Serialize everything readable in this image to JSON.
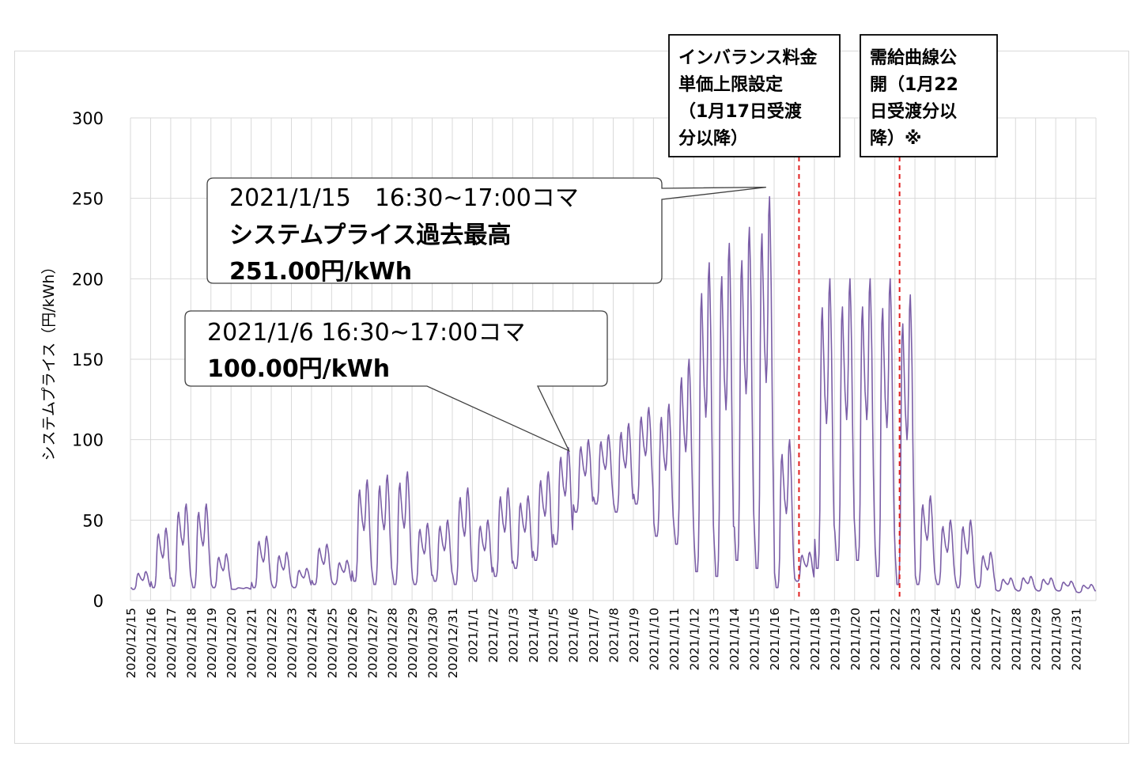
{
  "chart_data": {
    "type": "line",
    "title": "",
    "ylabel": "システムプライス（円/kWh）",
    "xlabel": "",
    "ylim": [
      0,
      300
    ],
    "yticks": [
      0,
      50,
      100,
      150,
      200,
      250,
      300
    ],
    "grid": true,
    "line_color": "#7b5ea7",
    "marker_color": "#e02020",
    "categories": [
      "2020/12/15",
      "2020/12/16",
      "2020/12/17",
      "2020/12/18",
      "2020/12/19",
      "2020/12/20",
      "2020/12/21",
      "2020/12/22",
      "2020/12/23",
      "2020/12/24",
      "2020/12/25",
      "2020/12/26",
      "2020/12/27",
      "2020/12/28",
      "2020/12/29",
      "2020/12/30",
      "2020/12/31",
      "2021/1/1",
      "2021/1/2",
      "2021/1/3",
      "2021/1/4",
      "2021/1/5",
      "2021/1/6",
      "2021/1/7",
      "2021/1/8",
      "2021/1/9",
      "2021/1/10",
      "2021/1/11",
      "2021/1/12",
      "2021/1/13",
      "2021/1/14",
      "2021/1/15",
      "2021/1/16",
      "2021/1/17",
      "2021/1/18",
      "2021/1/19",
      "2021/1/20",
      "2021/1/21",
      "2021/1/22",
      "2021/1/23",
      "2021/1/24",
      "2021/1/25",
      "2021/1/26",
      "2021/1/27",
      "2021/1/28",
      "2021/1/29",
      "2021/1/30",
      "2021/1/31"
    ],
    "series": [
      {
        "daily": [
          {
            "base": 7,
            "peak": 18
          },
          {
            "base": 8,
            "peak": 45
          },
          {
            "base": 9,
            "peak": 60
          },
          {
            "base": 8,
            "peak": 60
          },
          {
            "base": 8,
            "peak": 29
          },
          {
            "base": 7,
            "peak": 8
          },
          {
            "base": 8,
            "peak": 40
          },
          {
            "base": 8,
            "peak": 30
          },
          {
            "base": 8,
            "peak": 20
          },
          {
            "base": 10,
            "peak": 35
          },
          {
            "base": 10,
            "peak": 25
          },
          {
            "base": 12,
            "peak": 75
          },
          {
            "base": 10,
            "peak": 78
          },
          {
            "base": 10,
            "peak": 80
          },
          {
            "base": 10,
            "peak": 48
          },
          {
            "base": 12,
            "peak": 50
          },
          {
            "base": 10,
            "peak": 70
          },
          {
            "base": 12,
            "peak": 50
          },
          {
            "base": 15,
            "peak": 70
          },
          {
            "base": 20,
            "peak": 65
          },
          {
            "base": 25,
            "peak": 80
          },
          {
            "base": 35,
            "peak": 95
          },
          {
            "base": 55,
            "peak": 100
          },
          {
            "base": 60,
            "peak": 103
          },
          {
            "base": 55,
            "peak": 110
          },
          {
            "base": 60,
            "peak": 120
          },
          {
            "base": 40,
            "peak": 122
          },
          {
            "base": 35,
            "peak": 150
          },
          {
            "base": 18,
            "peak": 210
          },
          {
            "base": 15,
            "peak": 222
          },
          {
            "base": 25,
            "peak": 232
          },
          {
            "base": 20,
            "peak": 251
          },
          {
            "base": 8,
            "peak": 100
          },
          {
            "base": 12,
            "peak": 30
          },
          {
            "base": 20,
            "peak": 200
          },
          {
            "base": 25,
            "peak": 200
          },
          {
            "base": 25,
            "peak": 200
          },
          {
            "base": 15,
            "peak": 200
          },
          {
            "base": 10,
            "peak": 190
          },
          {
            "base": 10,
            "peak": 65
          },
          {
            "base": 10,
            "peak": 50
          },
          {
            "base": 8,
            "peak": 50
          },
          {
            "base": 8,
            "peak": 30
          },
          {
            "base": 6,
            "peak": 14
          },
          {
            "base": 6,
            "peak": 15
          },
          {
            "base": 6,
            "peak": 14
          },
          {
            "base": 6,
            "peak": 12
          },
          {
            "base": 5,
            "peak": 10
          }
        ]
      }
    ],
    "annotations": [
      {
        "id": "peak",
        "line1": "2021/1/15　16:30~17:00コマ",
        "line2": "システムプライス過去最高",
        "line3": "251.00円/kWh",
        "x": "2021/1/15",
        "y": 251
      },
      {
        "id": "jan6",
        "line1": "2021/1/6 16:30~17:00コマ",
        "line2": "100.00円/kWh",
        "x": "2021/1/6",
        "y": 100
      }
    ],
    "event_lines": [
      {
        "x": "2021/1/17",
        "lines": [
          "インバランス料金",
          "単価上限設定",
          "（1月17日受渡",
          "分以降）"
        ]
      },
      {
        "x": "2021/1/22",
        "lines": [
          "需給曲線公",
          "開（1月22",
          "日受渡分以",
          "降）※"
        ]
      }
    ]
  }
}
